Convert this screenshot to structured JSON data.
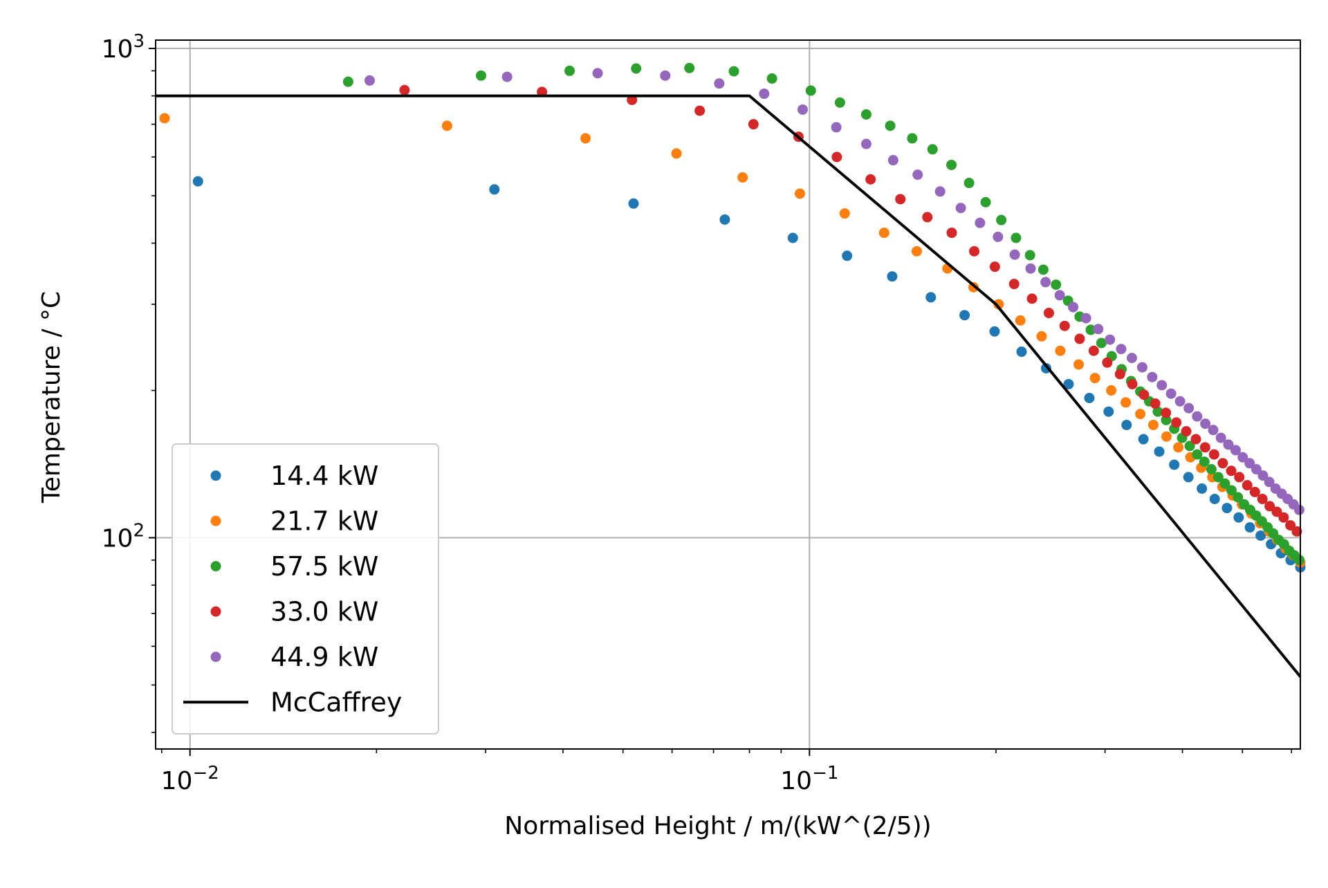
{
  "chart_data": {
    "type": "scatter",
    "title": "",
    "xlabel": "Normalised Height / m/(kW^(2/5))",
    "ylabel": "Temperature / °C",
    "xscale": "log",
    "yscale": "log",
    "xlim": [
      0.0088,
      0.62
    ],
    "ylim": [
      37,
      1040
    ],
    "grid": true,
    "legend_position": "lower-left",
    "x_ticks": [
      {
        "value": 0.01,
        "base": "10",
        "exp": "−2"
      },
      {
        "value": 0.1,
        "base": "10",
        "exp": "−1"
      }
    ],
    "y_ticks": [
      {
        "value": 100,
        "base": "10",
        "exp": "2"
      },
      {
        "value": 1000,
        "base": "10",
        "exp": "3"
      }
    ],
    "series": [
      {
        "name": "14.4 kW",
        "color": "#1f77b4",
        "x": [
          0.0103,
          0.031,
          0.052,
          0.073,
          0.094,
          0.115,
          0.136,
          0.157,
          0.178,
          0.199,
          0.22,
          0.241,
          0.262,
          0.283,
          0.304,
          0.325,
          0.346,
          0.367,
          0.388,
          0.409,
          0.43,
          0.451,
          0.472,
          0.493,
          0.514,
          0.535,
          0.556,
          0.577,
          0.598,
          0.62
        ],
        "y": [
          535,
          515,
          482,
          447,
          410,
          377,
          342,
          310,
          285,
          264,
          240,
          222,
          206,
          193,
          181,
          170,
          159,
          150,
          141,
          133,
          126,
          120,
          115,
          110,
          105,
          101,
          97,
          93,
          90,
          87
        ]
      },
      {
        "name": "21.7 kW",
        "color": "#ff7f0e",
        "x": [
          0.0091,
          0.026,
          0.0435,
          0.061,
          0.078,
          0.0965,
          0.114,
          0.132,
          0.149,
          0.167,
          0.184,
          0.202,
          0.219,
          0.237,
          0.254,
          0.272,
          0.289,
          0.307,
          0.324,
          0.342,
          0.359,
          0.377,
          0.394,
          0.412,
          0.429,
          0.447,
          0.464,
          0.482,
          0.499,
          0.517,
          0.534,
          0.552,
          0.569,
          0.587,
          0.604,
          0.62
        ],
        "y": [
          720,
          695,
          655,
          610,
          545,
          505,
          460,
          420,
          385,
          355,
          325,
          300,
          278,
          258,
          241,
          226,
          212,
          200,
          189,
          179,
          170,
          161,
          153,
          146,
          139,
          133,
          127,
          122,
          117,
          112,
          107,
          103,
          99,
          95,
          92,
          89
        ]
      },
      {
        "name": "57.5 kW",
        "color": "#2ca02c",
        "x": [
          0.018,
          0.0295,
          0.041,
          0.0525,
          0.064,
          0.0755,
          0.087,
          0.1005,
          0.112,
          0.1235,
          0.135,
          0.1465,
          0.158,
          0.1695,
          0.181,
          0.1925,
          0.204,
          0.2155,
          0.227,
          0.2385,
          0.25,
          0.2615,
          0.273,
          0.2845,
          0.296,
          0.3075,
          0.319,
          0.3305,
          0.342,
          0.3535,
          0.365,
          0.3765,
          0.388,
          0.3995,
          0.411,
          0.4225,
          0.434,
          0.4455,
          0.457,
          0.4685,
          0.48,
          0.4915,
          0.503,
          0.5145,
          0.526,
          0.5375,
          0.549,
          0.5605,
          0.572,
          0.5835,
          0.595,
          0.6065,
          0.618
        ],
        "y": [
          855,
          880,
          900,
          910,
          912,
          898,
          868,
          820,
          775,
          733,
          695,
          655,
          622,
          578,
          531,
          485,
          446,
          410,
          378,
          353,
          329,
          305,
          283,
          266,
          250,
          235,
          221,
          209,
          199,
          190,
          181,
          174,
          167,
          160,
          154,
          148,
          143,
          138,
          133,
          129,
          125,
          121,
          117,
          114,
          111,
          108,
          105,
          102,
          99,
          97,
          94,
          92,
          90
        ]
      },
      {
        "name": "33.0 kW",
        "color": "#d62728",
        "x": [
          0.0222,
          0.037,
          0.0517,
          0.0665,
          0.0812,
          0.096,
          0.1107,
          0.1255,
          0.1402,
          0.155,
          0.1697,
          0.1845,
          0.1992,
          0.214,
          0.2287,
          0.2435,
          0.2582,
          0.273,
          0.2877,
          0.3025,
          0.3172,
          0.332,
          0.3467,
          0.3615,
          0.3762,
          0.391,
          0.4057,
          0.4205,
          0.4352,
          0.45,
          0.4647,
          0.4795,
          0.4942,
          0.509,
          0.5237,
          0.5385,
          0.5532,
          0.568,
          0.5827,
          0.5975,
          0.612
        ],
        "y": [
          822,
          815,
          785,
          746,
          700,
          660,
          600,
          540,
          492,
          452,
          420,
          385,
          358,
          330,
          308,
          288,
          271,
          255,
          241,
          228,
          216,
          206,
          196,
          188,
          180,
          172,
          165,
          159,
          153,
          148,
          142,
          137,
          133,
          128,
          124,
          120,
          116,
          113,
          110,
          106,
          103
        ]
      },
      {
        "name": "44.9 kW",
        "color": "#9467bd",
        "x": [
          0.0195,
          0.0325,
          0.0455,
          0.0585,
          0.0715,
          0.0845,
          0.0975,
          0.1105,
          0.1235,
          0.1365,
          0.1495,
          0.1625,
          0.1755,
          0.1885,
          0.2015,
          0.2145,
          0.2275,
          0.2405,
          0.2535,
          0.2665,
          0.2795,
          0.2925,
          0.3055,
          0.3185,
          0.3315,
          0.3445,
          0.3575,
          0.3705,
          0.3835,
          0.3965,
          0.4095,
          0.4225,
          0.4355,
          0.4485,
          0.4615,
          0.4745,
          0.4875,
          0.5005,
          0.5135,
          0.5265,
          0.5395,
          0.5525,
          0.5655,
          0.5785,
          0.5915,
          0.6045,
          0.6175
        ],
        "y": [
          860,
          875,
          890,
          880,
          848,
          808,
          750,
          690,
          638,
          591,
          552,
          510,
          472,
          440,
          412,
          379,
          355,
          333,
          313,
          296,
          281,
          267,
          254,
          243,
          233,
          223,
          213,
          205,
          197,
          190,
          184,
          177,
          171,
          166,
          160,
          155,
          151,
          146,
          142,
          138,
          134,
          130,
          126,
          123,
          120,
          117,
          114
        ]
      }
    ],
    "lines": [
      {
        "name": "McCaffrey",
        "color": "#000000",
        "x": [
          0.0088,
          0.08,
          0.2,
          0.62
        ],
        "y": [
          800,
          800,
          300,
          52
        ]
      }
    ]
  }
}
